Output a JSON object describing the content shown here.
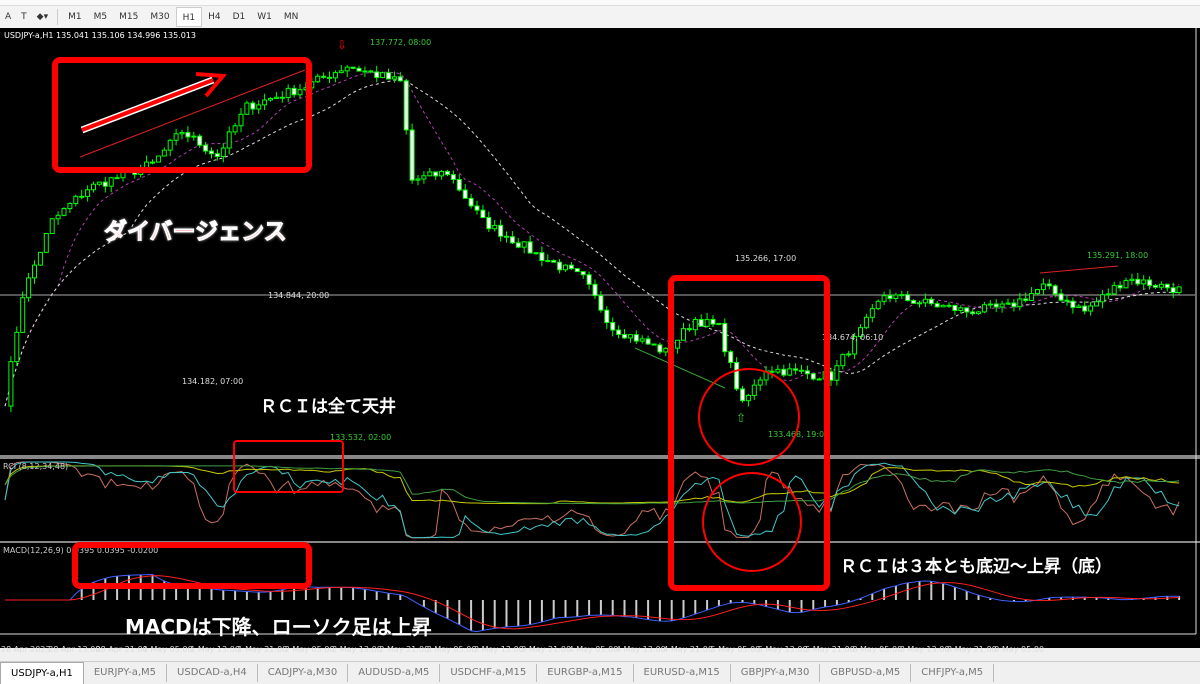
{
  "toolbar": {
    "tools": [
      "A",
      "T",
      "shapes"
    ],
    "timeframes": [
      "M1",
      "M5",
      "M15",
      "M30",
      "H1",
      "H4",
      "D1",
      "W1",
      "MN"
    ],
    "active_timeframe": "H1"
  },
  "chart": {
    "header": "USDJPY-a,H1  135.041 135.106 134.996 135.013",
    "price_labels": [
      "137.772, 08:00",
      "135.266, 17:00",
      "134.844, 20:00",
      "134.182, 07:00",
      "133.532, 02:00",
      "133.468, 19:00",
      "134.674, 06:10",
      "135.291, 18:00"
    ],
    "rci_label": "RCI (8,12,34,48)",
    "macd_label": "MACD(12,26,9) 0.0395 0.0395 -0.0200",
    "time_labels": [
      "28 Apr 2023",
      "28 Apr 13:00",
      "28 Apr 21:00",
      "1 May 05:00",
      "1 May 13:00",
      "1 May 21:00",
      "2 May 05:00",
      "2 May 13:00",
      "2 May 21:00",
      "3 May 05:00",
      "3 May 13:00",
      "3 May 21:00",
      "4 May 05:00",
      "4 May 13:00",
      "4 May 21:00",
      "5 May 05:00",
      "5 May 13:00",
      "5 May 21:00",
      "8 May 05:00",
      "8 May 13:00",
      "8 May 21:00",
      "9 May 05:00"
    ],
    "price_path": [
      [
        0,
        133.6
      ],
      [
        3,
        134.9
      ],
      [
        8,
        135.8
      ],
      [
        14,
        136.2
      ],
      [
        25,
        136.5
      ],
      [
        30,
        136.9
      ],
      [
        36,
        136.6
      ],
      [
        41,
        137.2
      ],
      [
        51,
        137.45
      ],
      [
        58,
        137.7
      ],
      [
        67,
        137.5
      ],
      [
        69,
        136.3
      ],
      [
        75,
        136.4
      ],
      [
        81,
        135.8
      ],
      [
        90,
        135.4
      ],
      [
        98,
        135.1
      ],
      [
        103,
        134.5
      ],
      [
        112,
        134.2
      ],
      [
        117,
        134.6
      ],
      [
        121,
        134.5
      ],
      [
        125,
        133.55
      ],
      [
        129,
        134.0
      ],
      [
        140,
        133.9
      ],
      [
        149,
        134.9
      ],
      [
        163,
        134.7
      ],
      [
        170,
        134.75
      ],
      [
        176,
        135.0
      ],
      [
        183,
        134.7
      ],
      [
        190,
        135.1
      ],
      [
        200,
        134.95
      ]
    ],
    "colors": {
      "bull": "#00ff00",
      "bear": "#ffffff",
      "annotation": "#ff0000"
    }
  },
  "annotations": {
    "divergence": "ダイバージェンス",
    "rci_top": "ＲＣＩは全て天井",
    "rci_bottom": "ＲＣＩは３本とも底辺～上昇（底）",
    "macd": "MACDは下降、ローソク足は上昇"
  },
  "tabs": [
    "USDJPY-a,H1",
    "EURJPY-a,M5",
    "USDCAD-a,H4",
    "CADJPY-a,M30",
    "AUDUSD-a,M5",
    "USDCHF-a,M15",
    "EURGBP-a,M15",
    "EURUSD-a,M15",
    "GBPJPY-a,M30",
    "GBPUSD-a,M5",
    "CHFJPY-a,M5"
  ]
}
